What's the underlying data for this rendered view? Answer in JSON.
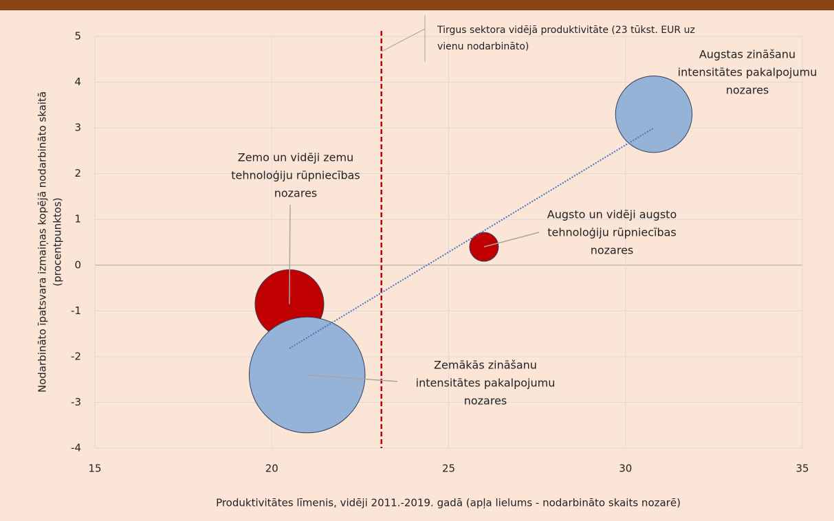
{
  "chart_data": {
    "type": "bubble",
    "xlabel": "Produktivitātes līmenis, vidēji 2011.-2019. gadā (apļa lielums - nodarbināto skaits nozarē)",
    "ylabel": [
      "Nodarbināto īpatsvara izmaiņas kopējā nodarbināto skaitā",
      "(procentpunktos)"
    ],
    "xlim": [
      15,
      35
    ],
    "xticks": [
      15,
      20,
      25,
      30,
      35
    ],
    "ylim": [
      -4,
      5
    ],
    "yticks": [
      -4,
      -3,
      -2,
      -1,
      0,
      1,
      2,
      3,
      4,
      5
    ],
    "grid": true,
    "points": [
      {
        "label": [
          "Zemo un vidēji zemu",
          "tehnoloģiju rūpniecības",
          "nozares"
        ],
        "x": 20.5,
        "y": -0.85,
        "size": 25,
        "color": "#c00000"
      },
      {
        "label": [
          "Zemākās zināšanu",
          "intensitātes pakalpojumu",
          "nozares"
        ],
        "x": 21.0,
        "y": -2.4,
        "size": 71,
        "color": "#95b3d7"
      },
      {
        "label": [
          "Augsto un vidēji augsto",
          "tehnoloģiju rūpniecības",
          "nozares"
        ],
        "x": 26.0,
        "y": 0.4,
        "size": 4.4,
        "color": "#c00000"
      },
      {
        "label": [
          "Augstas zināšanu",
          "intensitātes pakalpojumu",
          "nozares"
        ],
        "x": 30.8,
        "y": 3.3,
        "size": 31,
        "color": "#95b3d7"
      }
    ],
    "trendline": {
      "x": [
        20.5,
        30.8
      ],
      "y": [
        -1.82,
        3.0
      ],
      "color": "#4472c4"
    },
    "reference_line": {
      "x": 23.1,
      "color": "#c00000",
      "label": [
        "Tirgus sektora vidējā produktivitāte (23 tūkst. EUR uz",
        "vienu nodarbināto)"
      ]
    }
  }
}
